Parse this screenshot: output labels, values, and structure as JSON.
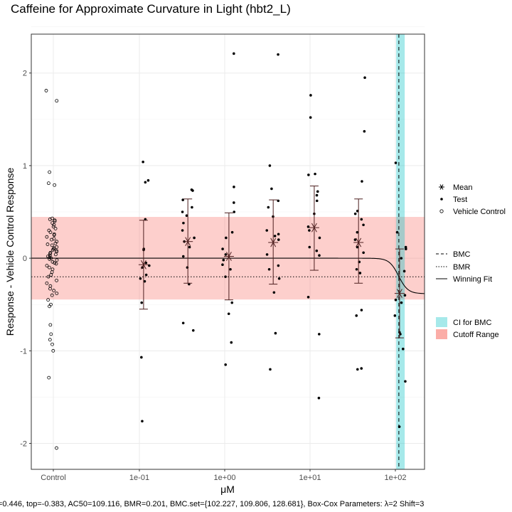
{
  "chart_data": {
    "type": "scatter",
    "title": "Caffeine for Approximate Curvature in Light (hbt2_L)",
    "xlabel": "μM",
    "ylabel": "Response - Vehicle Control Response",
    "x_scale": "log10",
    "x_ticks": [
      "Control",
      "1e-01",
      "1e+00",
      "1e+01",
      "1e+02"
    ],
    "y_ticks": [
      "-2",
      "-1",
      "0",
      "1",
      "2"
    ],
    "ylim": [
      -2.28,
      2.42
    ],
    "grid": true,
    "legend_position": "right",
    "caption": "=0.446, top=-0.383, AC50=109.116, BMR=0.201, BMC.set={102.227, 109.806, 128.681}, Box-Cox Parameters: λ=2 Shift=3",
    "cutoff_range": [
      -0.446,
      0.446
    ],
    "bmr": -0.201,
    "bmc": 109.806,
    "ci_for_bmc": [
      102.227,
      128.681
    ],
    "winning_fit": {
      "model": "hill",
      "top": -0.383,
      "ac50": 109.116,
      "n": 8
    },
    "vehicle_control": [
      1.81,
      1.7,
      0.93,
      0.81,
      0.79,
      0.43,
      0.42,
      0.41,
      0.4,
      0.38,
      0.36,
      0.34,
      0.32,
      0.3,
      0.28,
      0.26,
      0.25,
      0.23,
      0.21,
      0.2,
      0.18,
      0.16,
      0.15,
      0.14,
      0.12,
      0.11,
      0.1,
      0.09,
      0.08,
      0.07,
      0.06,
      0.05,
      0.04,
      0.03,
      0.02,
      0.01,
      0.0,
      -0.01,
      -0.02,
      -0.04,
      -0.05,
      -0.06,
      -0.08,
      -0.1,
      -0.12,
      -0.15,
      -0.18,
      -0.2,
      -0.24,
      -0.27,
      -0.3,
      -0.33,
      -0.35,
      -0.38,
      -0.4,
      -0.45,
      -0.5,
      -0.52,
      -0.72,
      -0.82,
      -0.88,
      -0.93,
      -1.0,
      -1.29,
      -2.05
    ],
    "test_series": [
      {
        "conc": 0.112,
        "mean": -0.07,
        "err_lo": -0.55,
        "err_hi": 0.41,
        "values": [
          1.04,
          0.84,
          0.82,
          0.42,
          0.1,
          0.09,
          -0.05,
          -0.08,
          -0.1,
          -0.18,
          -0.22,
          -0.25,
          -0.48,
          -1.07,
          -1.76
        ]
      },
      {
        "conc": 0.37,
        "mean": 0.18,
        "err_lo": -0.27,
        "err_hi": 0.64,
        "values": [
          0.74,
          0.73,
          0.63,
          0.55,
          0.5,
          0.46,
          0.38,
          0.3,
          0.22,
          0.18,
          0.12,
          0.02,
          -0.1,
          -0.28,
          -0.7,
          -0.78
        ]
      },
      {
        "conc": 1.12,
        "mean": 0.02,
        "err_lo": -0.45,
        "err_hi": 0.49,
        "values": [
          2.21,
          0.77,
          0.6,
          0.5,
          0.28,
          0.22,
          0.1,
          0.04,
          -0.02,
          -0.07,
          -0.12,
          -0.2,
          -0.48,
          -0.6,
          -0.91,
          -1.15
        ]
      },
      {
        "conc": 3.7,
        "mean": 0.17,
        "err_lo": -0.28,
        "err_hi": 0.63,
        "values": [
          2.2,
          1.0,
          0.75,
          0.62,
          0.55,
          0.45,
          0.3,
          0.26,
          0.24,
          0.2,
          0.04,
          -0.08,
          -0.12,
          -0.22,
          -0.37,
          -0.81,
          -1.2
        ]
      },
      {
        "conc": 11.2,
        "mean": 0.33,
        "err_lo": -0.13,
        "err_hi": 0.78,
        "values": [
          1.76,
          1.52,
          0.91,
          0.9,
          0.72,
          0.68,
          0.62,
          0.48,
          0.34,
          0.3,
          0.22,
          0.12,
          0.08,
          0.03,
          -0.42,
          -0.82,
          -1.51
        ]
      },
      {
        "conc": 37.0,
        "mean": 0.17,
        "err_lo": -0.27,
        "err_hi": 0.64,
        "values": [
          1.95,
          1.37,
          0.83,
          0.51,
          0.48,
          0.42,
          0.36,
          0.28,
          0.2,
          0.12,
          0.06,
          -0.04,
          -0.12,
          -0.16,
          -0.56,
          -0.62,
          -1.19,
          -1.2
        ]
      },
      {
        "conc": 112.0,
        "mean": -0.38,
        "err_lo": -0.86,
        "err_hi": 0.1,
        "values": [
          1.03,
          0.28,
          0.12,
          0.1,
          0.0,
          -0.14,
          -0.4,
          -0.45,
          -0.48,
          -0.62,
          -0.8,
          -0.82,
          -0.98,
          -1.33,
          -1.82
        ]
      }
    ],
    "legend": [
      {
        "key": "shape",
        "items": [
          "Mean",
          "Test",
          "Vehicle Control"
        ]
      },
      {
        "key": "line",
        "items": [
          "BMC",
          "BMR",
          "Winning Fit"
        ]
      },
      {
        "key": "fill",
        "items": [
          "CI for BMC",
          "Cutoff Range"
        ]
      }
    ],
    "colors": {
      "cutoff_fill": "#f8766d",
      "ci_fill": "#00bfc4",
      "mean_marker": "#4d1f1f",
      "grid": "#ebebeb"
    }
  }
}
